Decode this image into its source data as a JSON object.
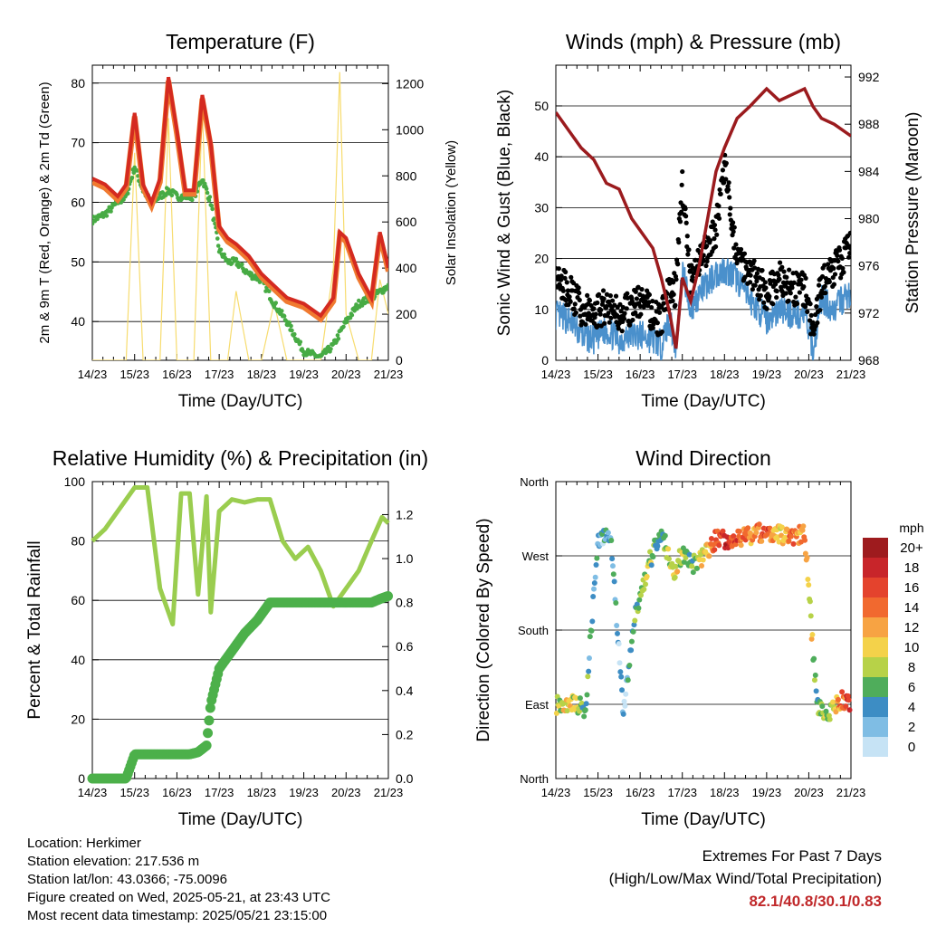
{
  "panels": {
    "temp": {
      "title": "Temperature (F)",
      "ylabel_left": "2m & 9m T (Red, Orange) & 2m Td (Green)",
      "ylabel_right": "Solar Insolation (Yellow)",
      "xlabel": "Time (Day/UTC)",
      "yticks_left": [
        "40",
        "50",
        "60",
        "70",
        "80"
      ],
      "yticks_right": [
        "0",
        "200",
        "400",
        "600",
        "800",
        "1000",
        "1200"
      ]
    },
    "wind": {
      "title": "Winds (mph) & Pressure (mb)",
      "ylabel_left": "Sonic Wind & Gust (Blue, Black)",
      "ylabel_right": "Station Pressure (Maroon)",
      "xlabel": "Time (Day/UTC)",
      "yticks_left": [
        "0",
        "10",
        "20",
        "30",
        "40",
        "50"
      ],
      "yticks_right": [
        "968",
        "972",
        "976",
        "980",
        "984",
        "988",
        "992"
      ]
    },
    "rh": {
      "title": "Relative Humidity (%) & Precipitation (in)",
      "ylabel_left": "Percent & Total Rainfall",
      "xlabel": "Time (Day/UTC)",
      "yticks_left": [
        "0",
        "20",
        "40",
        "60",
        "80",
        "100"
      ],
      "yticks_right": [
        "0.0",
        "0.2",
        "0.4",
        "0.6",
        "0.8",
        "1.0",
        "1.2"
      ]
    },
    "dir": {
      "title": "Wind Direction",
      "ylabel_left": "Direction (Colored By Speed)",
      "xlabel": "Time (Day/UTC)",
      "yticks_left": [
        "North",
        "East",
        "South",
        "West",
        "North"
      ],
      "legend_title": "mph",
      "legend_labels": [
        "20+",
        "18",
        "16",
        "14",
        "12",
        "10",
        "8",
        "6",
        "4",
        "2",
        "0"
      ],
      "legend_colors": [
        "#9e1b1e",
        "#c8252a",
        "#e4432d",
        "#f1692f",
        "#f7a343",
        "#f4d24a",
        "#b7d248",
        "#4fad5b",
        "#3d8dc4",
        "#7fbde4",
        "#c6e3f5"
      ]
    }
  },
  "xticks": [
    "14/23",
    "15/23",
    "16/23",
    "17/23",
    "18/23",
    "19/23",
    "20/23",
    "21/23"
  ],
  "footer": {
    "location": "Location: Herkimer",
    "elevation": "Station elevation: 217.536 m",
    "latlon": "Station lat/lon: 43.0366; -75.0096",
    "created": "Figure created on Wed, 2025-05-21, at 23:43 UTC",
    "recent": "Most recent data timestamp: 2025/05/21 23:15:00",
    "extremes_title": "Extremes For Past 7 Days",
    "extremes_sub": "(High/Low/Max Wind/Total Precipitation)",
    "extremes_values": "82.1/40.8/30.1/0.83"
  },
  "colors": {
    "temp2m": "#d42a20",
    "temp9m": "#f07a30",
    "dewpoint": "#47ab44",
    "solar": "#f7dc6f",
    "wind": "#4a90cc",
    "gust": "#000000",
    "pressure": "#9b1b1e",
    "rh": "#9acd4f",
    "precip": "#4cb04a"
  },
  "chart_data": [
    {
      "type": "line",
      "title": "Temperature (F)",
      "xlabel": "Time (Day/UTC)",
      "ylabel": "2m & 9m T (Red, Orange) & 2m Td (Green)",
      "ylabel_right": "Solar Insolation (Yellow)",
      "ylim": [
        33.5,
        83
      ],
      "ylim_right": [
        0,
        1280
      ],
      "x": [
        14.0,
        14.3,
        14.6,
        14.8,
        15.0,
        15.2,
        15.4,
        15.6,
        15.8,
        16.0,
        16.2,
        16.4,
        16.6,
        16.8,
        17.0,
        17.2,
        17.4,
        17.7,
        18.0,
        18.3,
        18.6,
        19.0,
        19.4,
        19.7,
        19.85,
        20.0,
        20.3,
        20.6,
        20.8,
        21.0
      ],
      "series": [
        {
          "name": "2m T",
          "values": [
            64,
            63,
            61,
            63,
            75,
            63,
            60,
            64,
            81,
            72,
            62,
            62,
            78,
            70,
            56,
            54,
            53,
            51,
            48,
            46,
            44,
            43,
            41,
            44,
            55,
            54,
            48,
            44,
            55,
            49
          ]
        },
        {
          "name": "Td",
          "values": [
            57,
            58,
            60,
            61,
            66,
            62,
            60,
            61,
            62,
            61,
            61,
            61,
            64,
            60,
            52,
            50,
            50,
            48,
            47,
            43,
            40,
            35,
            34,
            36,
            38,
            40,
            43,
            44,
            45,
            46
          ]
        },
        {
          "name": "Solar",
          "values": [
            0,
            0,
            0,
            0,
            900,
            0,
            0,
            0,
            1050,
            0,
            0,
            0,
            1100,
            0,
            0,
            0,
            300,
            0,
            0,
            250,
            0,
            0,
            0,
            400,
            1250,
            200,
            0,
            0,
            350,
            200
          ]
        }
      ]
    },
    {
      "type": "line",
      "title": "Winds (mph) & Pressure (mb)",
      "xlabel": "Time (Day/UTC)",
      "ylabel": "Sonic Wind & Gust (Blue, Black)",
      "ylabel_right": "Station Pressure (Maroon)",
      "ylim": [
        0,
        58
      ],
      "ylim_right": [
        968,
        993
      ],
      "x": [
        14.0,
        14.3,
        14.6,
        14.9,
        15.2,
        15.5,
        15.8,
        16.0,
        16.3,
        16.5,
        16.7,
        16.85,
        17.0,
        17.2,
        17.4,
        17.6,
        17.8,
        18.0,
        18.3,
        18.6,
        19.0,
        19.3,
        19.6,
        19.9,
        20.1,
        20.3,
        20.6,
        20.8,
        21.0
      ],
      "series": [
        {
          "name": "Wind",
          "values": [
            9,
            8,
            5,
            4,
            6,
            4,
            5,
            5,
            4,
            3,
            8,
            2,
            18,
            10,
            13,
            15,
            17,
            18,
            16,
            12,
            8,
            10,
            9,
            9,
            2,
            12,
            10,
            12,
            13
          ]
        },
        {
          "name": "Gust",
          "values": [
            15,
            14,
            10,
            9,
            11,
            9,
            10,
            12,
            9,
            8,
            14,
            14,
            35,
            15,
            19,
            22,
            26,
            38,
            20,
            18,
            13,
            16,
            14,
            14,
            5,
            15,
            18,
            20,
            22
          ]
        },
        {
          "name": "Pressure",
          "values": [
            989,
            987.5,
            986,
            985,
            983,
            982.5,
            980,
            979,
            977.5,
            975,
            972,
            969,
            975,
            973,
            976,
            980,
            984,
            986,
            988.5,
            989.5,
            991,
            990,
            990.5,
            991,
            989.5,
            988.5,
            988,
            987.5,
            987
          ]
        }
      ]
    },
    {
      "type": "line",
      "title": "Relative Humidity (%) & Precipitation (in)",
      "xlabel": "Time (Day/UTC)",
      "ylabel": "Percent & Total Rainfall",
      "ylim": [
        0,
        100
      ],
      "ylim_right": [
        0,
        1.35
      ],
      "x": [
        14.0,
        14.3,
        14.6,
        14.8,
        15.0,
        15.3,
        15.6,
        15.9,
        16.1,
        16.3,
        16.5,
        16.7,
        16.8,
        17.0,
        17.3,
        17.6,
        17.9,
        18.2,
        18.5,
        18.8,
        19.1,
        19.4,
        19.7,
        20.0,
        20.3,
        20.6,
        20.85,
        21.0
      ],
      "series": [
        {
          "name": "RH",
          "values": [
            80,
            84,
            90,
            94,
            98,
            98,
            64,
            52,
            96,
            96,
            62,
            95,
            56,
            90,
            94,
            93,
            94,
            94,
            80,
            74,
            78,
            70,
            58,
            64,
            70,
            80,
            88,
            86
          ]
        },
        {
          "name": "Precip",
          "values": [
            0.0,
            0.0,
            0.0,
            0.0,
            0.11,
            0.11,
            0.11,
            0.11,
            0.11,
            0.11,
            0.12,
            0.15,
            0.34,
            0.5,
            0.58,
            0.66,
            0.72,
            0.8,
            0.8,
            0.8,
            0.8,
            0.8,
            0.8,
            0.8,
            0.8,
            0.8,
            0.82,
            0.83
          ]
        }
      ]
    },
    {
      "type": "scatter",
      "title": "Wind Direction",
      "xlabel": "Time (Day/UTC)",
      "ylabel": "Direction (Colored By Speed)",
      "ylim": [
        0,
        360
      ],
      "x": [
        14.0,
        14.3,
        14.7,
        15.0,
        15.3,
        15.6,
        15.9,
        16.2,
        16.5,
        16.8,
        17.0,
        17.2,
        17.5,
        17.8,
        18.1,
        18.4,
        18.7,
        19.0,
        19.3,
        19.6,
        19.9,
        20.2,
        20.5,
        20.8,
        21.0
      ],
      "series": [
        {
          "name": "Direction",
          "values": [
            90,
            92,
            85,
            290,
            300,
            80,
            200,
            260,
            300,
            250,
            275,
            258,
            268,
            290,
            290,
            292,
            296,
            300,
            296,
            290,
            300,
            85,
            80,
            95,
            92
          ]
        },
        {
          "name": "Speed",
          "values": [
            8,
            10,
            6,
            3,
            4,
            2,
            6,
            8,
            5,
            10,
            8,
            6,
            10,
            15,
            18,
            14,
            12,
            16,
            10,
            14,
            12,
            6,
            8,
            14,
            16
          ]
        }
      ]
    }
  ]
}
